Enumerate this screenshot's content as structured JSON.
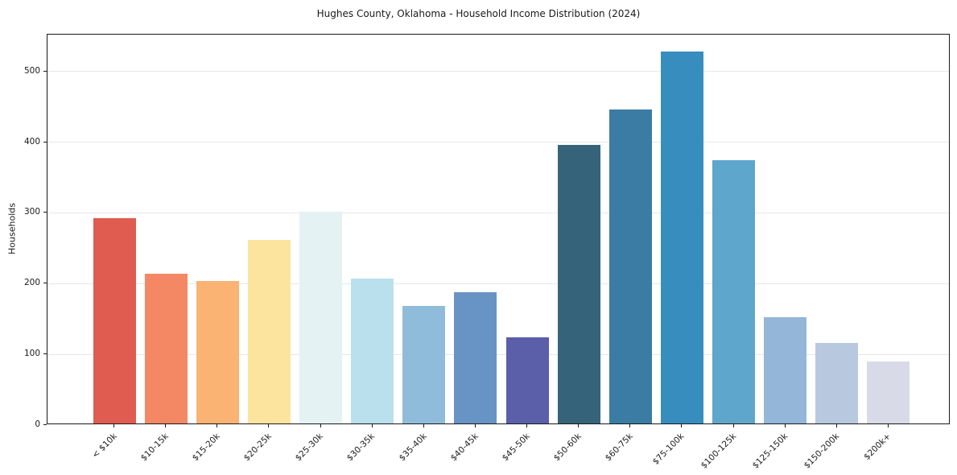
{
  "chart_data": {
    "type": "bar",
    "title": "Hughes County, Oklahoma - Household Income Distribution (2024)",
    "ylabel": "Households",
    "xlabel": "",
    "categories": [
      "< $10k",
      "$10-15k",
      "$15-20k",
      "$20-25k",
      "$25-30k",
      "$30-35k",
      "$35-40k",
      "$40-45k",
      "$45-50k",
      "$50-60k",
      "$60-75k",
      "$75-100k",
      "$100-125k",
      "$125-150k",
      "$150-200k",
      "$200k+"
    ],
    "values": [
      290,
      212,
      202,
      260,
      299,
      205,
      166,
      186,
      122,
      394,
      444,
      526,
      372,
      150,
      114,
      88
    ],
    "bar_colors": [
      "#e05c50",
      "#f58864",
      "#fbb373",
      "#fde49e",
      "#e5f2f4",
      "#bae0ee",
      "#90bcdc",
      "#6793c5",
      "#5b5ea9",
      "#35647a",
      "#3b7ca4",
      "#388dbf",
      "#5ea6cb",
      "#93b6d9",
      "#b8c9df",
      "#d8dae7"
    ],
    "yticks": [
      0,
      100,
      200,
      300,
      400,
      500
    ],
    "ylim": [
      0,
      552
    ],
    "grid": "horizontal",
    "legend": "none"
  },
  "colors": {
    "background": "#ffffff",
    "grid": "#e7e7e7",
    "spine": "#1a1a1a",
    "text": "#1a1a1a"
  }
}
